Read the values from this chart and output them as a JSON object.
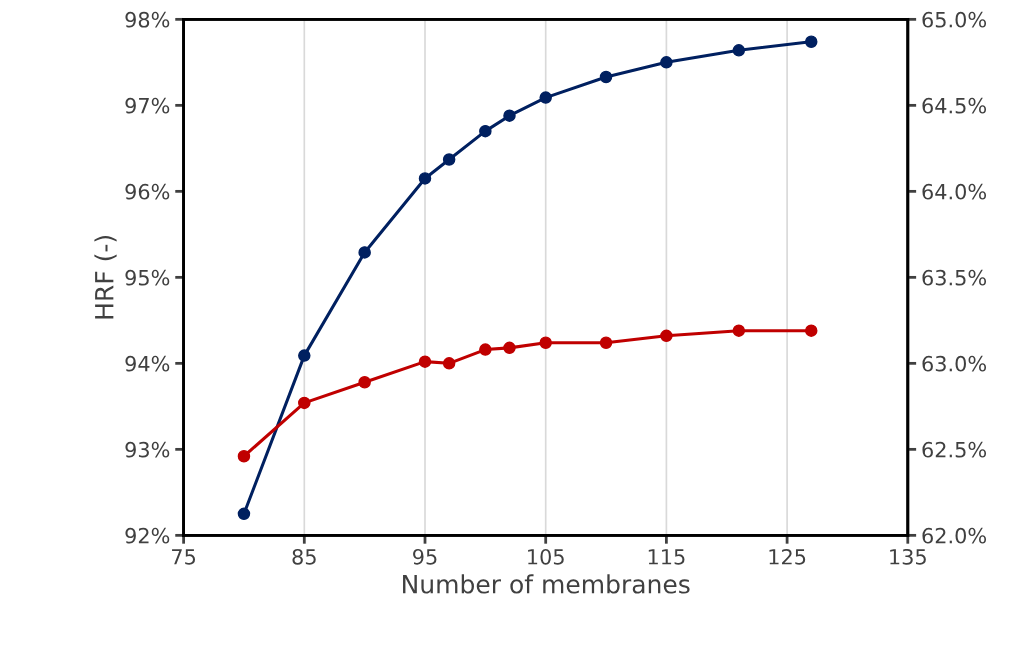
{
  "chart_data": {
    "type": "line",
    "xlabel": "Number of membranes",
    "ylabel": "HRF (-)",
    "x": [
      80,
      85,
      90,
      95,
      97,
      100,
      102,
      105,
      110,
      115,
      121,
      127
    ],
    "series": [
      {
        "color": "#002060",
        "values": [
          92.25,
          94.09,
          95.29,
          96.15,
          96.37,
          96.7,
          96.88,
          97.09,
          97.33,
          97.5,
          97.64,
          97.74
        ]
      },
      {
        "color": "#c00000",
        "axis": "y2",
        "values": [
          62.46,
          62.77,
          62.89,
          63.01,
          63.0,
          63.08,
          63.09,
          63.12,
          63.12,
          63.16,
          63.19,
          63.19
        ]
      }
    ],
    "xlim": [
      75,
      135
    ],
    "xticks": [
      75,
      85,
      95,
      105,
      115,
      125,
      135
    ],
    "ylim": [
      92,
      98
    ],
    "yticks": [
      {
        "value": 92,
        "label": "92%"
      },
      {
        "value": 93,
        "label": "93%"
      },
      {
        "value": 94,
        "label": "94%"
      },
      {
        "value": 95,
        "label": "95%"
      },
      {
        "value": 96,
        "label": "96%"
      },
      {
        "value": 97,
        "label": "97%"
      },
      {
        "value": 98,
        "label": "98%"
      }
    ],
    "y2lim": [
      62,
      65
    ],
    "y2ticks": [
      {
        "value": 62,
        "label": "62.0%"
      },
      {
        "value": 62.5,
        "label": "62.5%"
      },
      {
        "value": 63,
        "label": "63.0%"
      },
      {
        "value": 63.5,
        "label": "63.5%"
      },
      {
        "value": 64,
        "label": "64.0%"
      },
      {
        "value": 64.5,
        "label": "64.5%"
      },
      {
        "value": 65,
        "label": "65.0%"
      }
    ],
    "grid": "x",
    "marker": "circle",
    "line_style": "solid"
  }
}
